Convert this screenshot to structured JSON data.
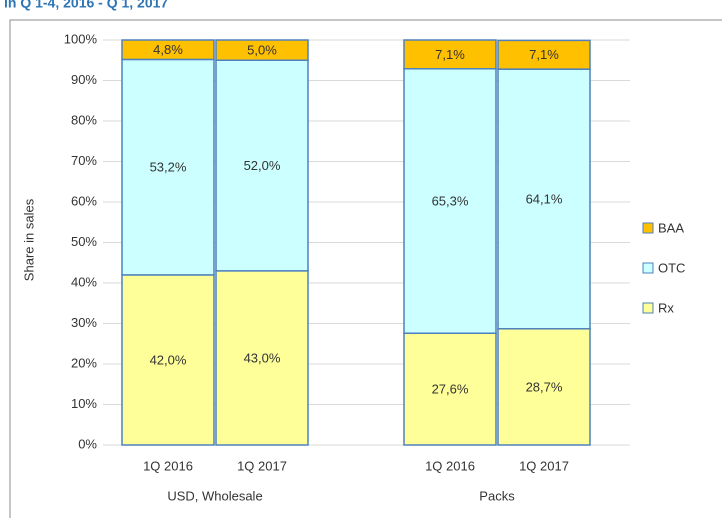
{
  "chart_data": {
    "type": "stacked_bar",
    "title": "in Q 1-4, 2016 - Q 1, 2017",
    "y_label": "Share in sales",
    "categories": [
      "1Q 2016",
      "1Q 2017",
      null,
      "1Q 2016",
      "1Q 2017"
    ],
    "group_labels": [
      "USD, Wholesale",
      "Packs"
    ],
    "series": [
      {
        "name": "Rx",
        "color": "#ffff99",
        "values": [
          42.0,
          43.0,
          null,
          27.6,
          28.7
        ],
        "value_labels": [
          "42,0%",
          "43,0%",
          null,
          "27,6%",
          "28,7%"
        ]
      },
      {
        "name": "OTC",
        "color": "#ccffff",
        "values": [
          53.2,
          52.0,
          null,
          65.3,
          64.1
        ],
        "value_labels": [
          "53,2%",
          "52,0%",
          null,
          "65,3%",
          "64,1%"
        ]
      },
      {
        "name": "BAA",
        "color": "#ffc000",
        "values": [
          4.8,
          5.0,
          null,
          7.1,
          7.1
        ],
        "value_labels": [
          "4,8%",
          "5,0%",
          null,
          "7,1%",
          "7,1%"
        ]
      }
    ],
    "ylim": [
      0,
      100
    ],
    "yticks": [
      {
        "value": 0,
        "label": "0%"
      },
      {
        "value": 10,
        "label": "10%"
      },
      {
        "value": 20,
        "label": "20%"
      },
      {
        "value": 30,
        "label": "30%"
      },
      {
        "value": 40,
        "label": "40%"
      },
      {
        "value": 50,
        "label": "50%"
      },
      {
        "value": 60,
        "label": "60%"
      },
      {
        "value": 70,
        "label": "70%"
      },
      {
        "value": 80,
        "label": "80%"
      },
      {
        "value": 90,
        "label": "90%"
      },
      {
        "value": 100,
        "label": "100%"
      }
    ],
    "grid": true,
    "legend": "right"
  }
}
